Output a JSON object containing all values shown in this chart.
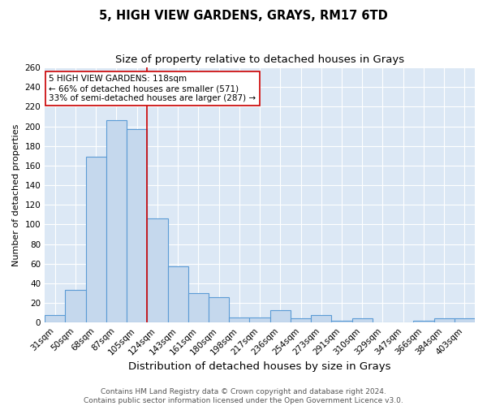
{
  "title": "5, HIGH VIEW GARDENS, GRAYS, RM17 6TD",
  "subtitle": "Size of property relative to detached houses in Grays",
  "xlabel": "Distribution of detached houses by size in Grays",
  "ylabel": "Number of detached properties",
  "categories": [
    "31sqm",
    "50sqm",
    "68sqm",
    "87sqm",
    "105sqm",
    "124sqm",
    "143sqm",
    "161sqm",
    "180sqm",
    "198sqm",
    "217sqm",
    "236sqm",
    "254sqm",
    "273sqm",
    "291sqm",
    "310sqm",
    "329sqm",
    "347sqm",
    "366sqm",
    "384sqm",
    "403sqm"
  ],
  "values": [
    8,
    33,
    169,
    206,
    197,
    106,
    57,
    30,
    26,
    5,
    5,
    13,
    4,
    8,
    2,
    4,
    0,
    0,
    2,
    4,
    4
  ],
  "bar_color": "#c5d8ed",
  "bar_edge_color": "#5b9bd5",
  "vline_x_index": 5,
  "vline_color": "#cc0000",
  "annotation_line1": "5 HIGH VIEW GARDENS: 118sqm",
  "annotation_line2": "← 66% of detached houses are smaller (571)",
  "annotation_line3": "33% of semi-detached houses are larger (287) →",
  "annotation_box_color": "#ffffff",
  "annotation_box_edge": "#cc0000",
  "ylim": [
    0,
    260
  ],
  "yticks": [
    0,
    20,
    40,
    60,
    80,
    100,
    120,
    140,
    160,
    180,
    200,
    220,
    240,
    260
  ],
  "bg_color": "#dce8f5",
  "footer1": "Contains HM Land Registry data © Crown copyright and database right 2024.",
  "footer2": "Contains public sector information licensed under the Open Government Licence v3.0.",
  "title_fontsize": 10.5,
  "subtitle_fontsize": 9.5,
  "xlabel_fontsize": 9.5,
  "ylabel_fontsize": 8,
  "tick_fontsize": 7.5,
  "annotation_fontsize": 7.5,
  "footer_fontsize": 6.5
}
